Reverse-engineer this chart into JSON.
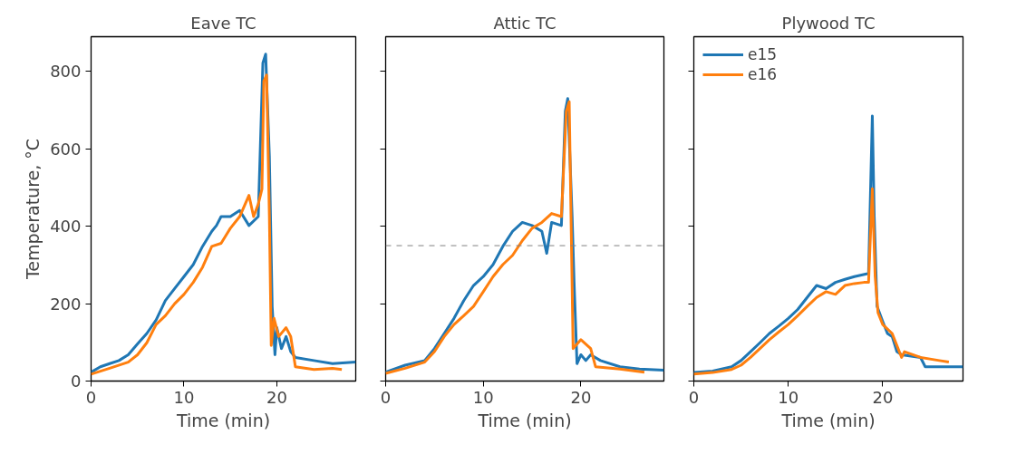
{
  "chart_data": [
    {
      "type": "line",
      "title": "Eave TC",
      "xlabel": "Time (min)",
      "ylabel": "Temperature, °C",
      "xlim": [
        0,
        28.5
      ],
      "ylim": [
        0,
        890
      ],
      "xticks": [
        0,
        10,
        20
      ],
      "yticks": [
        0,
        200,
        400,
        600,
        800
      ],
      "grid": false,
      "legend": false,
      "line_style": "solid",
      "series": [
        {
          "color": "#1f77b4",
          "x": [
            0,
            1,
            2,
            3,
            4,
            5,
            6,
            7,
            8,
            9,
            10,
            11,
            12,
            13,
            13.5,
            14,
            15,
            16,
            17,
            18,
            18.5,
            18.8,
            19.2,
            19.5,
            19.8,
            20,
            20.5,
            21,
            21.5,
            22,
            24,
            26,
            28.5
          ],
          "values": [
            23,
            37,
            45,
            53,
            68,
            96,
            123,
            158,
            208,
            239,
            270,
            301,
            348,
            387,
            402,
            425,
            425,
            441,
            402,
            425,
            822,
            845,
            581,
            193,
            68,
            138,
            84,
            115,
            76,
            61,
            53,
            45,
            49
          ]
        },
        {
          "color": "#ff7f0e",
          "x": [
            0,
            2,
            4,
            5,
            6,
            7,
            8,
            9,
            10,
            11,
            12,
            13,
            14,
            15,
            16,
            17,
            17.5,
            18,
            18.4,
            18.6,
            18.9,
            19.2,
            19.4,
            19.7,
            20.2,
            21,
            21.5,
            22,
            24,
            26,
            27
          ],
          "values": [
            18,
            33,
            49,
            68,
            99,
            146,
            169,
            200,
            224,
            255,
            294,
            348,
            356,
            395,
            425,
            480,
            425,
            457,
            496,
            775,
            791,
            425,
            92,
            162,
            115,
            138,
            115,
            37,
            30,
            33,
            30
          ]
        }
      ]
    },
    {
      "type": "line",
      "title": "Attic TC",
      "xlabel": "Time (min)",
      "xlim": [
        0,
        28.5
      ],
      "ylim": [
        0,
        890
      ],
      "xticks": [
        0,
        10,
        20
      ],
      "yticks": [
        0,
        200,
        400,
        600,
        800
      ],
      "tick_labels": "x",
      "grid": false,
      "legend": false,
      "line_style": "solid",
      "ref_lines": [
        {
          "axis": "y",
          "value": 350,
          "color": "#808080",
          "line_style": "dashed"
        }
      ],
      "series": [
        {
          "color": "#1f77b4",
          "x": [
            0,
            2,
            4,
            5,
            6,
            7,
            8,
            9,
            10,
            11,
            12,
            13,
            14,
            15,
            16,
            16.5,
            17,
            18,
            18.4,
            18.65,
            19.1,
            19.3,
            19.6,
            20,
            20.5,
            21,
            22,
            24,
            26,
            28.5
          ],
          "values": [
            23,
            41,
            53,
            84,
            123,
            162,
            208,
            247,
            270,
            301,
            348,
            387,
            410,
            402,
            387,
            330,
            410,
            402,
            697,
            730,
            425,
            255,
            45,
            68,
            53,
            68,
            53,
            37,
            31,
            28
          ]
        },
        {
          "color": "#ff7f0e",
          "x": [
            0,
            2,
            4,
            5,
            6,
            7,
            8,
            9,
            10,
            11,
            12,
            13,
            14,
            15,
            16,
            17,
            18,
            18.5,
            18.8,
            19.2,
            20,
            21,
            21.5,
            24,
            26.5
          ],
          "values": [
            20,
            33,
            49,
            76,
            115,
            146,
            169,
            193,
            231,
            270,
            301,
            325,
            363,
            395,
            410,
            433,
            425,
            697,
            722,
            84,
            107,
            84,
            37,
            31,
            23
          ]
        }
      ]
    },
    {
      "type": "line",
      "title": "Plywood TC",
      "xlabel": "Time (min)",
      "xlim": [
        0,
        28.5
      ],
      "ylim": [
        0,
        890
      ],
      "xticks": [
        0,
        10,
        20
      ],
      "yticks": [
        0,
        200,
        400,
        600,
        800
      ],
      "tick_labels": "x",
      "grid": false,
      "legend": "top left",
      "line_style": "solid",
      "series": [
        {
          "name": "e15",
          "color": "#1f77b4",
          "x": [
            0,
            2,
            4,
            5,
            6,
            7,
            8,
            9,
            10,
            11,
            12,
            13,
            14,
            15,
            16,
            17,
            18.5,
            18.9,
            19.1,
            19.4,
            20,
            20.5,
            21,
            21.5,
            22,
            24,
            24.5,
            26,
            28.5
          ],
          "values": [
            22,
            26,
            37,
            53,
            76,
            99,
            123,
            142,
            162,
            185,
            216,
            247,
            239,
            255,
            263,
            270,
            278,
            685,
            425,
            193,
            154,
            123,
            115,
            76,
            68,
            61,
            37,
            37,
            37
          ]
        },
        {
          "name": "e16",
          "color": "#ff7f0e",
          "x": [
            0,
            2,
            4,
            5,
            6,
            7,
            8,
            9,
            10,
            11,
            12,
            13,
            14,
            15,
            16,
            17,
            18,
            18.5,
            18.9,
            19.2,
            19.5,
            20,
            21,
            22,
            22.3,
            24,
            26,
            27
          ],
          "values": [
            18,
            22,
            30,
            41,
            61,
            84,
            107,
            127,
            146,
            169,
            193,
            216,
            231,
            224,
            247,
            252,
            255,
            255,
            497,
            270,
            177,
            146,
            123,
            61,
            76,
            61,
            53,
            49
          ]
        }
      ]
    }
  ]
}
